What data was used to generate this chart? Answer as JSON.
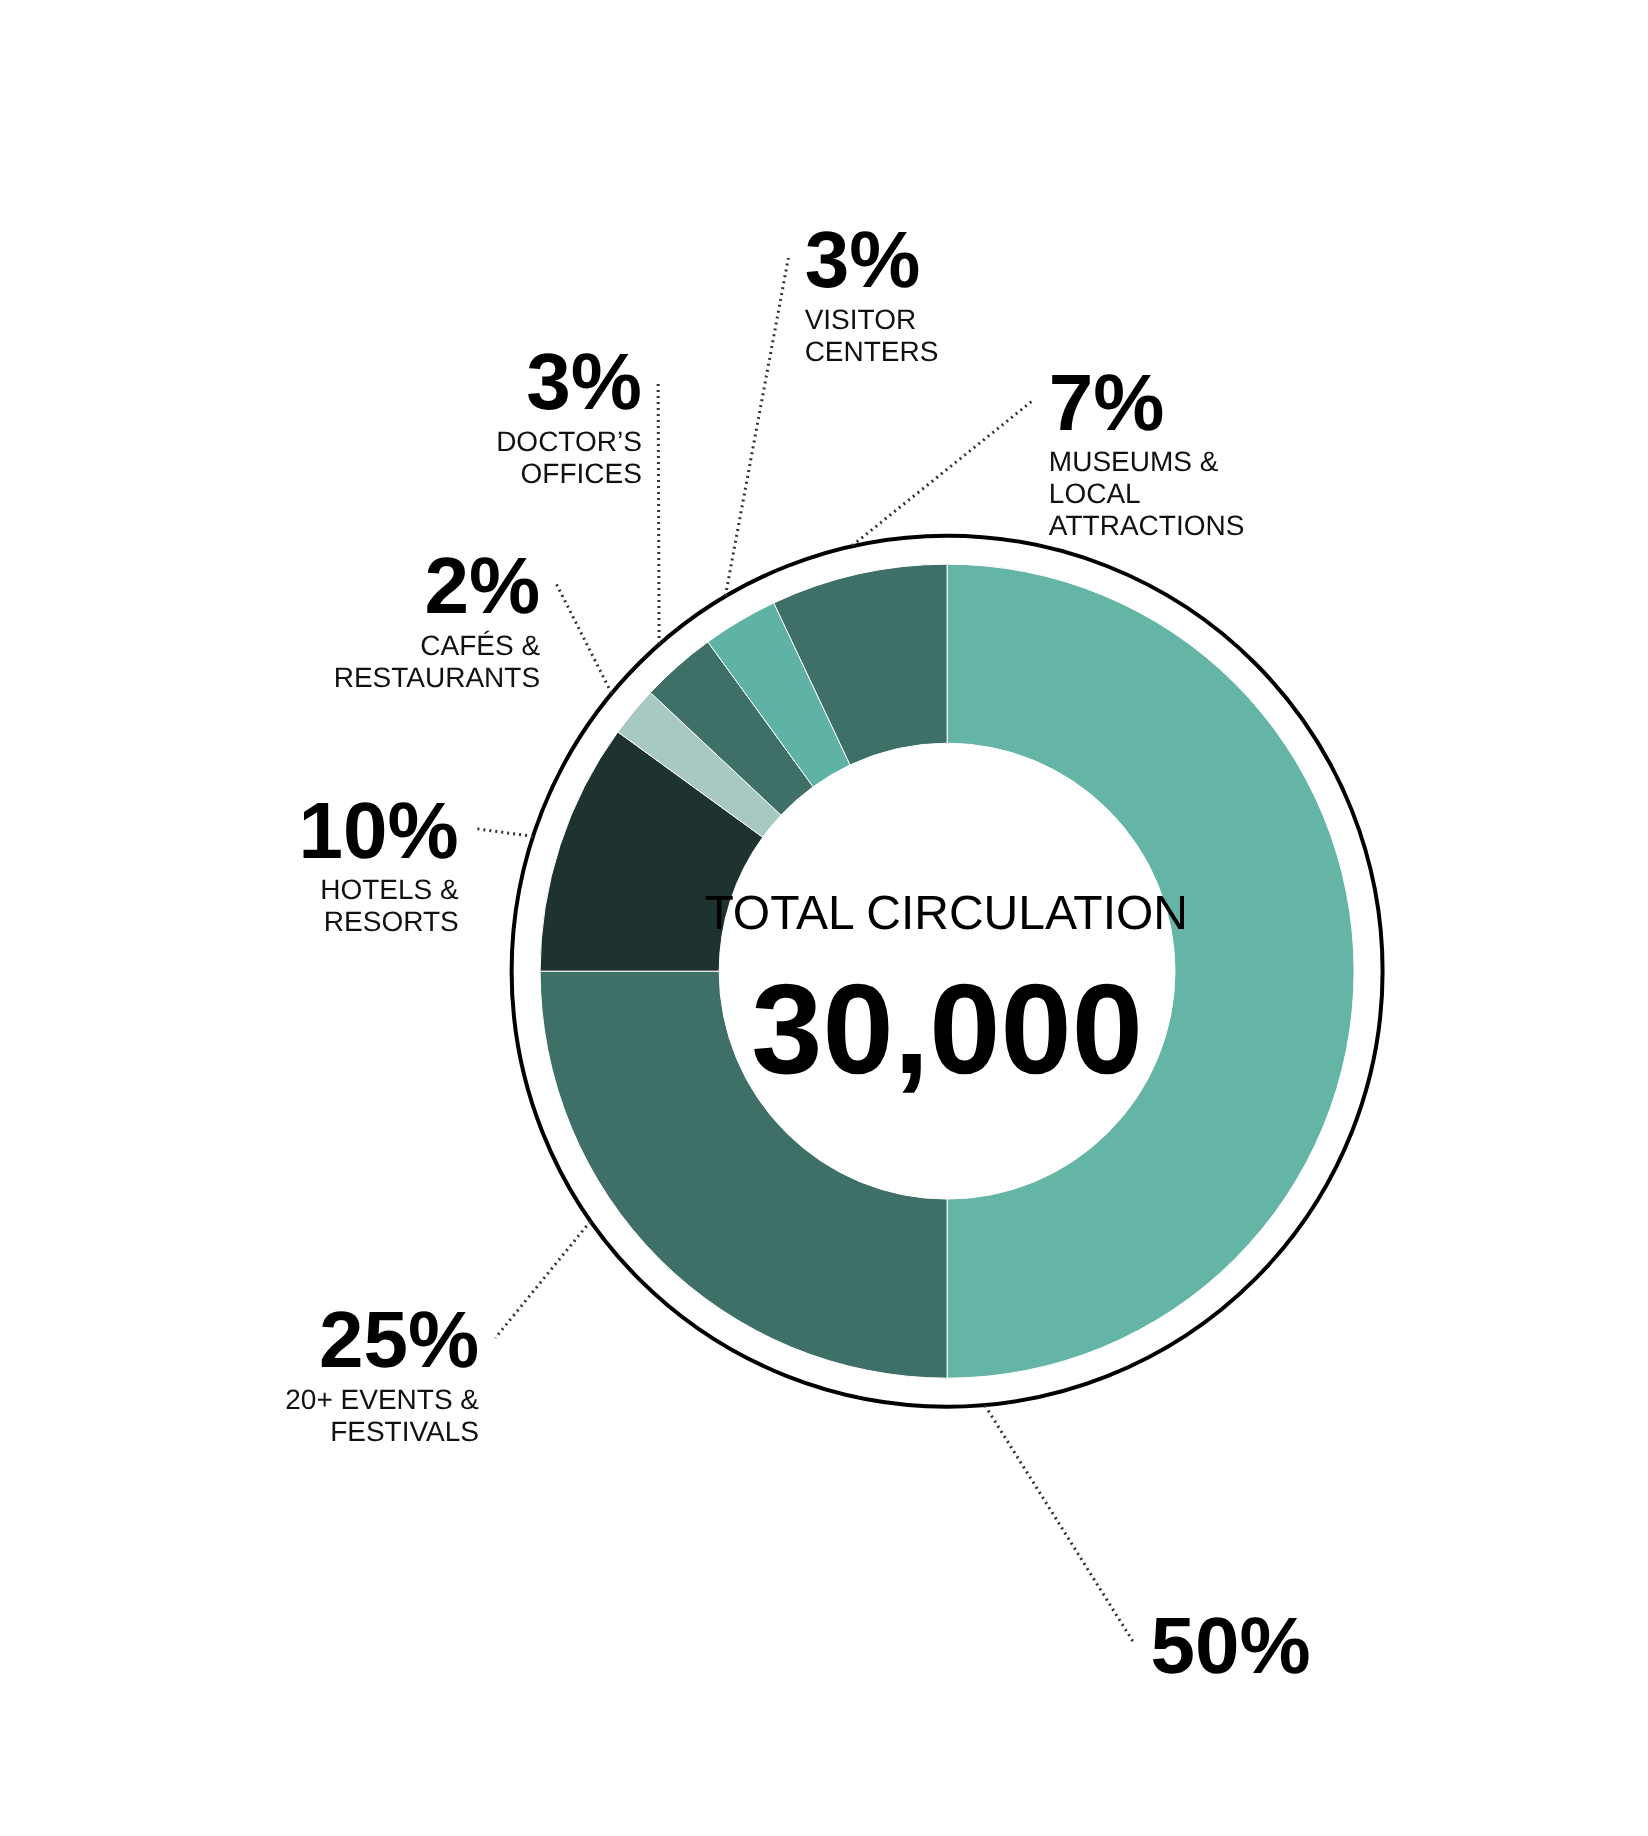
{
  "chart_data": {
    "type": "donut",
    "categories": [
      null,
      "20+ EVENTS & FESTIVALS",
      "HOTELS & RESORTS",
      "CAFÉS & RESTAURANTS",
      "DOCTOR’S OFFICES",
      "VISITOR CENTERS",
      "MUSEUMS & LOCAL ATTRACTIONS"
    ],
    "values": [
      50,
      25,
      10,
      2,
      3,
      3,
      7
    ],
    "colors": [
      "#64b5a6",
      "#3f7068",
      "#1e3330",
      "#a8c8c2",
      "#3f7068",
      "#5fb3a5",
      "#3f7068"
    ],
    "value_labels": [
      "50%",
      "25%",
      "10%",
      "2%",
      "3%",
      "3%",
      "7%"
    ],
    "annotations": [
      "TOTAL CIRCULATION",
      "30,000"
    ]
  }
}
